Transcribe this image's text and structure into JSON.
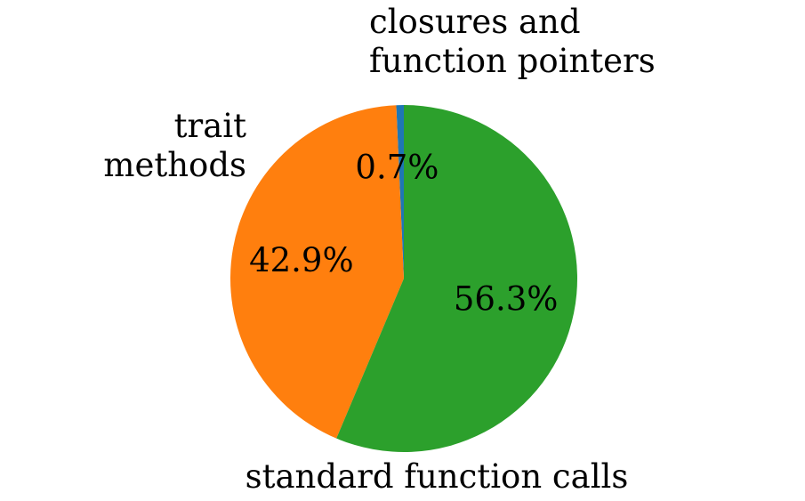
{
  "chart_data": {
    "type": "pie",
    "slices": [
      {
        "label_lines": [
          "closures and",
          "function pointers"
        ],
        "value": 0.7,
        "pct_label": "0.7%",
        "color": "#1f77b4"
      },
      {
        "label_lines": [
          "trait",
          "methods"
        ],
        "value": 42.9,
        "pct_label": "42.9%",
        "color": "#ff7f0e"
      },
      {
        "label_lines": [
          "standard function calls"
        ],
        "value": 56.3,
        "pct_label": "56.3%",
        "color": "#2ca02c"
      }
    ],
    "start_angle_deg": 90,
    "direction": "counterclockwise",
    "legend": "none"
  }
}
